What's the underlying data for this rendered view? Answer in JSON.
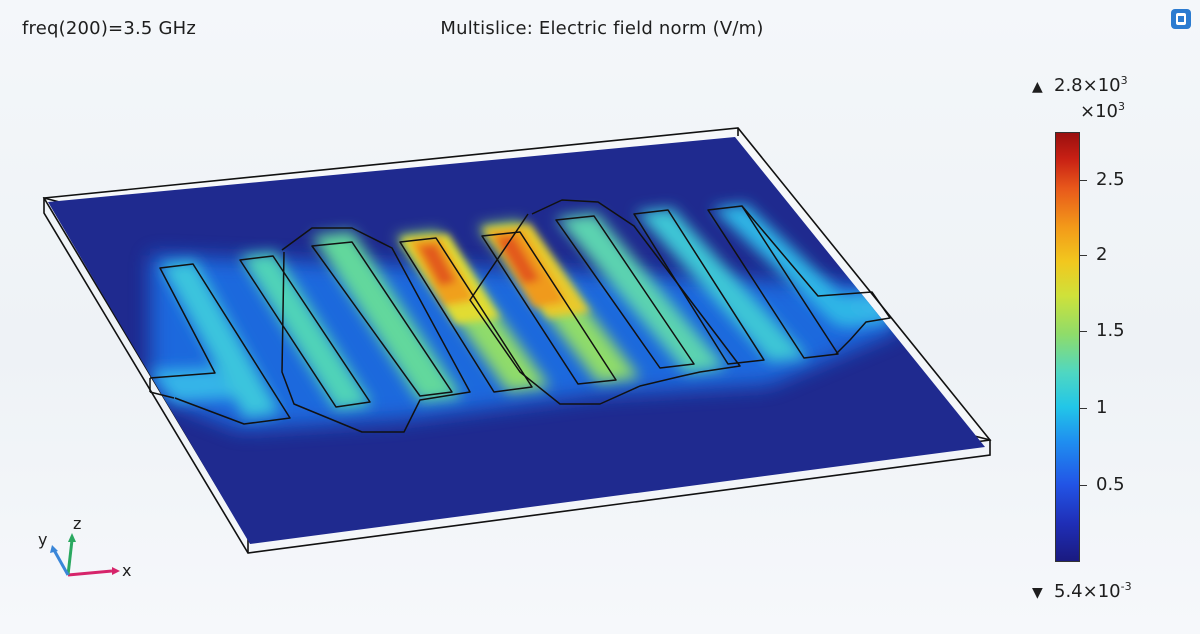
{
  "header": {
    "freq_text": "freq(200)=3.5 GHz",
    "plot_title": "Multislice: Electric field norm (V/m)"
  },
  "colorbar": {
    "max_label": "2.8×10",
    "max_exp": "3",
    "multiplier": "×10",
    "multiplier_exp": "3",
    "min_label": "5.4×10",
    "min_exp": "-3",
    "ticks": [
      "2.5",
      "2",
      "1.5",
      "1",
      "0.5"
    ],
    "colors": [
      "#1a1a80",
      "#2255e6",
      "#22c6e8",
      "#8fdc6a",
      "#f2c71e",
      "#e8591b",
      "#9a0f0f"
    ]
  },
  "axes": {
    "x": "x",
    "y": "y",
    "z": "z"
  },
  "icons": {
    "corner": "app-logo-icon"
  }
}
